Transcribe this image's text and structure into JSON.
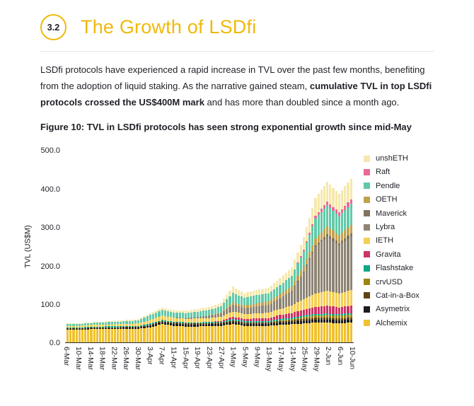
{
  "section": {
    "badge": "3.2",
    "title": "The Growth of LSDfi"
  },
  "paragraph": {
    "part1": "LSDfi protocols have experienced a rapid increase in TVL over the past few months, benefiting from the adoption of liquid staking. As the narrative gained steam, ",
    "bold": "cumulative TVL in top LSDfi protocols crossed the US$400M mark",
    "part2": " and has more than doubled since a month ago."
  },
  "figure_caption": "Figure 10: TVL in LSDfi protocols has seen strong exponential growth since mid-May",
  "chart_data": {
    "type": "bar",
    "stacked": true,
    "title": "",
    "xlabel": "",
    "ylabel": "TVL (US$M)",
    "ylim": [
      0,
      500
    ],
    "yticks": [
      "0.0",
      "100.0",
      "200.0",
      "300.0",
      "400.0",
      "500.0"
    ],
    "grid": false,
    "legend_position": "right",
    "interpolation_steps": 4,
    "x_labels": [
      "6-Mar",
      "10-Mar",
      "14-Mar",
      "18-Mar",
      "22-Mar",
      "26-Mar",
      "30-Mar",
      "3-Apr",
      "7-Apr",
      "11-Apr",
      "15-Apr",
      "19-Apr",
      "23-Apr",
      "27-Apr",
      "1-May",
      "5-May",
      "9-May",
      "13-May",
      "17-May",
      "21-May",
      "25-May",
      "29-May",
      "2-Jun",
      "6-Jun",
      "10-Jun"
    ],
    "series_note": "series listed bottom-to-top of stack; values are US$M at each labeled date",
    "series": [
      {
        "name": "Alchemix",
        "color": "#f0c12e",
        "values": [
          34,
          34,
          35,
          35,
          35,
          36,
          36,
          40,
          48,
          44,
          42,
          42,
          43,
          44,
          48,
          44,
          44,
          44,
          46,
          48,
          50,
          52,
          52,
          50,
          52
        ]
      },
      {
        "name": "Asymetrix",
        "color": "#1c1c1c",
        "values": [
          2,
          2,
          2,
          3,
          3,
          3,
          3,
          4,
          5,
          5,
          5,
          5,
          5,
          5,
          6,
          5,
          5,
          5,
          6,
          6,
          7,
          8,
          8,
          8,
          8
        ]
      },
      {
        "name": "Cat-in-a-Box",
        "color": "#5e4413",
        "values": [
          2,
          2,
          2,
          2,
          2,
          2,
          2,
          3,
          3,
          3,
          3,
          3,
          3,
          3,
          4,
          4,
          4,
          4,
          4,
          4,
          5,
          5,
          5,
          5,
          5
        ]
      },
      {
        "name": "crvUSD",
        "color": "#9c8412",
        "values": [
          0,
          0,
          0,
          0,
          0,
          0,
          0,
          0,
          0,
          0,
          0,
          0,
          0,
          0,
          0,
          0,
          0,
          0,
          2,
          3,
          5,
          6,
          7,
          7,
          8
        ]
      },
      {
        "name": "Flashstake",
        "color": "#0fa887",
        "values": [
          2,
          2,
          2,
          2,
          3,
          3,
          3,
          3,
          3,
          3,
          3,
          3,
          3,
          3,
          4,
          3,
          3,
          3,
          4,
          4,
          4,
          4,
          4,
          4,
          4
        ]
      },
      {
        "name": "Gravita",
        "color": "#ce3365",
        "values": [
          0,
          0,
          0,
          0,
          0,
          0,
          0,
          0,
          0,
          0,
          0,
          0,
          0,
          2,
          5,
          6,
          7,
          8,
          10,
          12,
          15,
          18,
          20,
          18,
          20
        ]
      },
      {
        "name": "IETH",
        "color": "#f4cf56",
        "values": [
          4,
          4,
          5,
          5,
          5,
          5,
          6,
          9,
          12,
          10,
          9,
          10,
          10,
          11,
          14,
          12,
          13,
          14,
          16,
          20,
          28,
          36,
          40,
          36,
          40
        ]
      },
      {
        "name": "Lybra",
        "color": "#8d8474",
        "values": [
          0,
          0,
          0,
          0,
          0,
          0,
          0,
          0,
          0,
          0,
          2,
          4,
          6,
          8,
          18,
          16,
          18,
          20,
          28,
          38,
          70,
          120,
          140,
          125,
          140
        ]
      },
      {
        "name": "Maverick",
        "color": "#81745f",
        "values": [
          0,
          0,
          0,
          0,
          0,
          0,
          0,
          0,
          0,
          0,
          0,
          0,
          0,
          0,
          0,
          0,
          0,
          0,
          0,
          0,
          2,
          5,
          7,
          7,
          8
        ]
      },
      {
        "name": "OETH",
        "color": "#c2a14d",
        "values": [
          0,
          0,
          0,
          0,
          0,
          0,
          0,
          0,
          0,
          0,
          0,
          0,
          0,
          3,
          6,
          7,
          8,
          9,
          10,
          12,
          15,
          18,
          20,
          20,
          22
        ]
      },
      {
        "name": "Pendle",
        "color": "#62c9a8",
        "values": [
          4,
          5,
          5,
          6,
          6,
          7,
          8,
          13,
          14,
          14,
          13,
          14,
          15,
          16,
          25,
          20,
          22,
          22,
          24,
          28,
          38,
          52,
          55,
          50,
          55
        ]
      },
      {
        "name": "Raft",
        "color": "#ea6a96",
        "values": [
          0,
          0,
          0,
          0,
          0,
          0,
          0,
          0,
          0,
          0,
          0,
          0,
          0,
          0,
          0,
          0,
          0,
          0,
          0,
          0,
          3,
          8,
          10,
          10,
          12
        ]
      },
      {
        "name": "unshETH",
        "color": "#f6e8ac",
        "values": [
          2,
          2,
          2,
          2,
          3,
          3,
          3,
          5,
          6,
          6,
          6,
          7,
          8,
          9,
          16,
          12,
          13,
          14,
          18,
          22,
          33,
          46,
          52,
          48,
          54
        ]
      }
    ]
  }
}
